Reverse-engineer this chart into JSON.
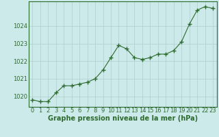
{
  "x": [
    0,
    1,
    2,
    3,
    4,
    5,
    6,
    7,
    8,
    9,
    10,
    11,
    12,
    13,
    14,
    15,
    16,
    17,
    18,
    19,
    20,
    21,
    22,
    23
  ],
  "y": [
    1019.8,
    1019.7,
    1019.7,
    1020.2,
    1020.6,
    1020.6,
    1020.7,
    1020.8,
    1021.0,
    1021.5,
    1022.2,
    1022.9,
    1022.7,
    1022.2,
    1022.1,
    1022.2,
    1022.4,
    1022.4,
    1022.6,
    1023.1,
    1024.1,
    1024.9,
    1025.1,
    1025.0
  ],
  "line_color": "#2d6a2d",
  "marker": "+",
  "marker_size": 4,
  "marker_edge_width": 1.0,
  "line_width": 0.8,
  "background_color": "#cceaea",
  "grid_color": "#b0cccc",
  "tick_label_color": "#2d6a2d",
  "xlabel": "Graphe pression niveau de la mer (hPa)",
  "xlabel_color": "#2d6a2d",
  "xlabel_fontsize": 7,
  "tick_fontsize": 6,
  "ylim": [
    1019.4,
    1025.4
  ],
  "yticks": [
    1020,
    1021,
    1022,
    1023,
    1024
  ],
  "xlim": [
    -0.5,
    23.5
  ],
  "spine_color": "#2d6a2d"
}
